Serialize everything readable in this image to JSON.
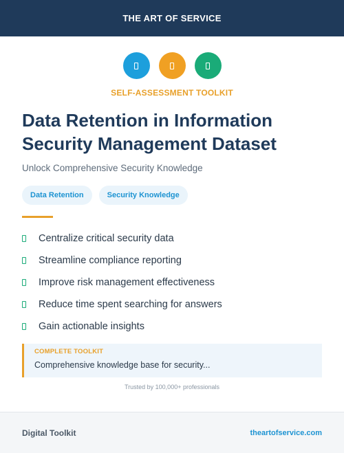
{
  "header": {
    "title": "THE ART OF SERVICE"
  },
  "icons": [
    {
      "name": "document-icon",
      "color": "#1d9fdc"
    },
    {
      "name": "document-icon",
      "color": "#f0a023"
    },
    {
      "name": "document-icon",
      "color": "#1aab78"
    }
  ],
  "kicker": "SELF-ASSESSMENT TOOLKIT",
  "title": "Data Retention in Information Security Management Dataset",
  "subtitle": "Unlock Comprehensive Security Knowledge",
  "tags": [
    "Data Retention",
    "Security Knowledge"
  ],
  "features": [
    "Centralize critical security data",
    "Streamline compliance reporting",
    "Improve risk management effectiveness",
    "Reduce time spent searching for answers",
    "Gain actionable insights"
  ],
  "toolkit": {
    "kicker": "COMPLETE TOOLKIT",
    "description": "Comprehensive knowledge base for security..."
  },
  "trusted": "Trusted by 100,000+ professionals",
  "footer": {
    "left": "Digital Toolkit",
    "right": "theartofservice.com"
  }
}
